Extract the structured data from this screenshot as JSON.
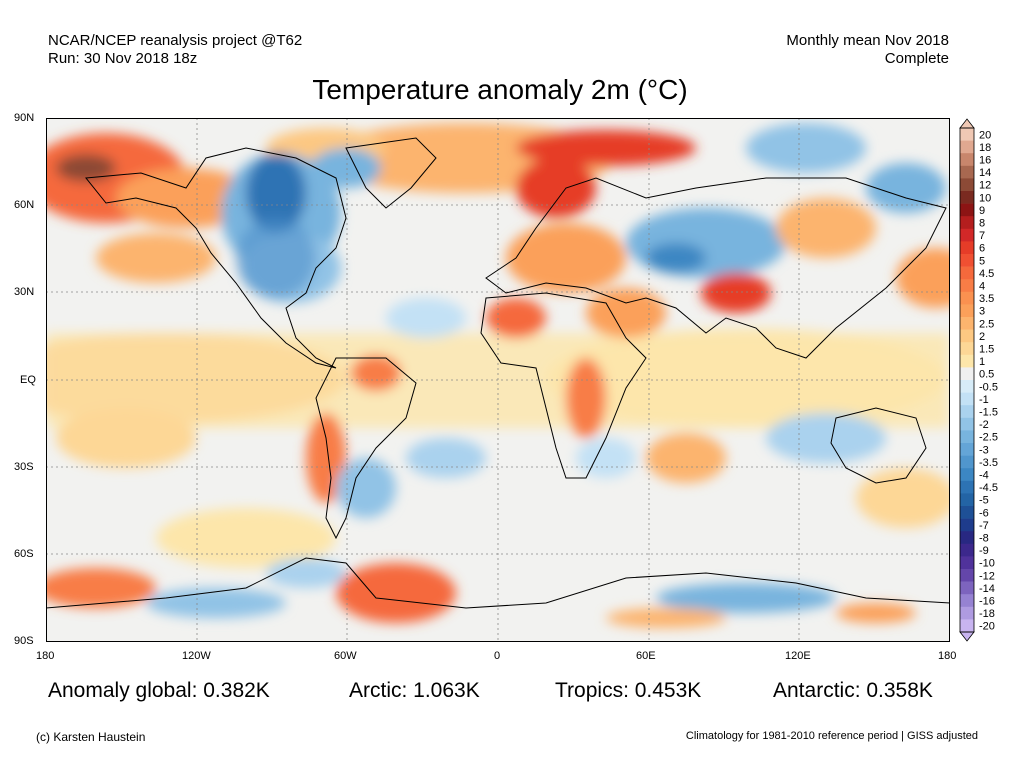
{
  "header": {
    "source_line1": "NCAR/NCEP reanalysis project @T62",
    "source_line2": "Run: 30 Nov 2018 18z",
    "period_line1": "Monthly mean Nov 2018",
    "period_line2": "Complete"
  },
  "title": "Temperature anomaly 2m (°C)",
  "lat_labels": [
    "90N",
    "60N",
    "30N",
    "EQ",
    "30S",
    "60S",
    "90S"
  ],
  "lon_labels": [
    "180",
    "120W",
    "60W",
    "0",
    "60E",
    "120E",
    "180"
  ],
  "colorbar": {
    "levels": [
      "20",
      "18",
      "16",
      "14",
      "12",
      "10",
      "9",
      "8",
      "7",
      "6",
      "5",
      "4.5",
      "4",
      "3.5",
      "3",
      "2.5",
      "2",
      "1.5",
      "1",
      "0.5",
      "-0.5",
      "-1",
      "-1.5",
      "-2",
      "-2.5",
      "-3",
      "-3.5",
      "-4",
      "-4.5",
      "-5",
      "-6",
      "-7",
      "-8",
      "-9",
      "-10",
      "-12",
      "-14",
      "-16",
      "-18",
      "-20"
    ],
    "colors": [
      "#f0c8b4",
      "#e0a890",
      "#c8866c",
      "#a86850",
      "#8c4a36",
      "#7a2a20",
      "#8c1414",
      "#b41e1e",
      "#d22828",
      "#e63c28",
      "#f05032",
      "#f5693c",
      "#f87d46",
      "#fa9150",
      "#fba05a",
      "#fcb46e",
      "#fdc882",
      "#fdd796",
      "#fde6aa",
      "#f0f0f0",
      "#d7ecf8",
      "#c3e1f5",
      "#aad2ee",
      "#91c3e6",
      "#78b4de",
      "#64a5d7",
      "#5096cd",
      "#3c87c3",
      "#2d73b4",
      "#2364a5",
      "#1e5096",
      "#1e3c8c",
      "#282882",
      "#3c288c",
      "#50329b",
      "#6446aa",
      "#7d64be",
      "#9682d2",
      "#af9be1",
      "#c8b4f0"
    ]
  },
  "stats": {
    "global": "Anomaly global: 0.382K",
    "arctic": "Arctic: 1.063K",
    "tropics": "Tropics: 0.453K",
    "antarctic": "Antarctic: 0.358K"
  },
  "footer": {
    "credit": "(c) Karsten Haustein",
    "climatology": "Climatology for 1981-2010 reference period | GISS adjusted"
  }
}
